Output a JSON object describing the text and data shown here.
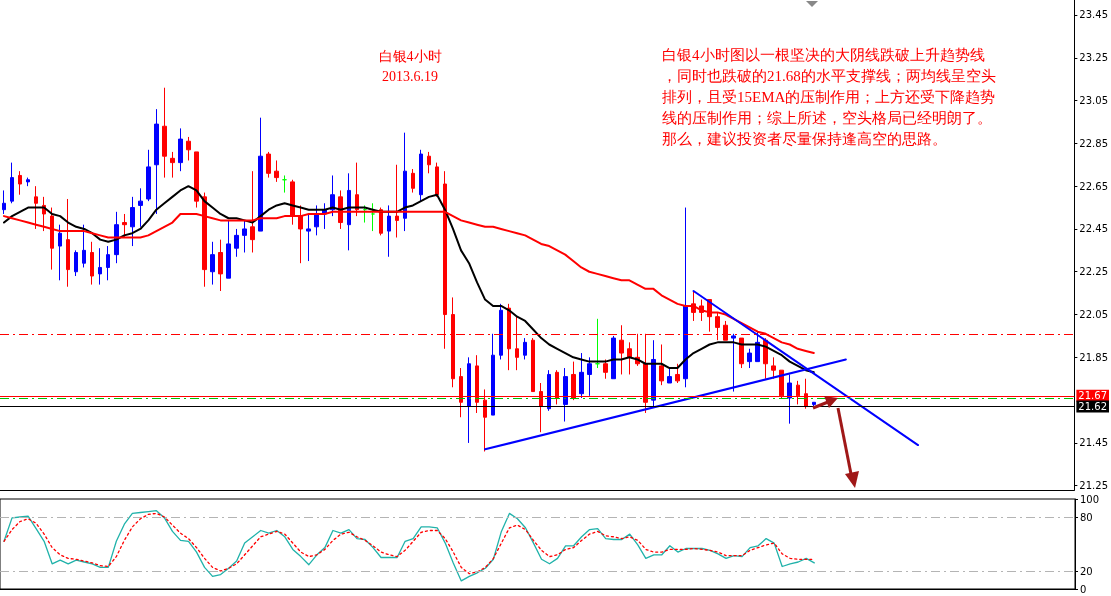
{
  "chart_data": [
    {
      "type": "candlestick",
      "title": "白银4小时",
      "subtitle": "2013.6.19",
      "annotations": [
        "白银4小时图以一根坚决的大阴线跌破上升趋势线，同时也跌破的21.68的水平支撑线；两均线呈空头排列，且受15EMA的压制作用；上方还受下降趋势线的压制作用；综上所述，空头格局已经明朗了。那么，建议投资者尽量保持逢高空的思路。"
      ],
      "categories": [
        null,
        null,
        null,
        null,
        null,
        null,
        null,
        null,
        null,
        null,
        null,
        null,
        null,
        null,
        null,
        null,
        null,
        null,
        null,
        null,
        null,
        null,
        null,
        null,
        null,
        null,
        null,
        null,
        null,
        null,
        null,
        null,
        null,
        null,
        null,
        null,
        null,
        null,
        null,
        null,
        null,
        null,
        null,
        null,
        null,
        null,
        null,
        null,
        null,
        null,
        null,
        null,
        null,
        null,
        null,
        null,
        null,
        null,
        null,
        null,
        null,
        null,
        null,
        null,
        null,
        null,
        null,
        null,
        null,
        null,
        null,
        null,
        null,
        null,
        null,
        null,
        null,
        null,
        null,
        null,
        null,
        null,
        null,
        null,
        null,
        null,
        null,
        null,
        null,
        null,
        null,
        null,
        null,
        null,
        null,
        null,
        null,
        null,
        null,
        null,
        null,
        null,
        null,
        null,
        null,
        null,
        null,
        null,
        null,
        null,
        null,
        null,
        null,
        null,
        null,
        null,
        null,
        null,
        null,
        null,
        null,
        null,
        null,
        null,
        null,
        null,
        null,
        null,
        null,
        null,
        null,
        null,
        null,
        null
      ],
      "series": [
        {
          "ohlc": [
            [
              22.54,
              22.63,
              22.52,
              22.57
            ],
            [
              22.58,
              22.76,
              22.57,
              22.69
            ],
            [
              22.7,
              22.72,
              22.61,
              22.66
            ],
            [
              22.67,
              22.69,
              22.65,
              22.68
            ],
            [
              22.6,
              22.65,
              22.45,
              22.57
            ],
            [
              22.56,
              22.6,
              22.44,
              22.52
            ],
            [
              22.51,
              22.55,
              22.26,
              22.36
            ],
            [
              22.37,
              22.47,
              22.21,
              22.43
            ],
            [
              22.4,
              22.59,
              22.18,
              22.26
            ],
            [
              22.25,
              22.35,
              22.23,
              22.34
            ],
            [
              22.29,
              22.47,
              22.27,
              22.35
            ],
            [
              22.34,
              22.39,
              22.19,
              22.23
            ],
            [
              22.24,
              22.36,
              22.19,
              22.27
            ],
            [
              22.27,
              22.37,
              22.21,
              22.33
            ],
            [
              22.33,
              22.53,
              22.29,
              22.47
            ],
            [
              22.48,
              22.52,
              22.41,
              22.47
            ],
            [
              22.46,
              22.6,
              22.37,
              22.55
            ],
            [
              22.56,
              22.64,
              22.46,
              22.58
            ],
            [
              22.59,
              22.82,
              22.58,
              22.74
            ],
            [
              22.75,
              23.01,
              22.52,
              22.94
            ],
            [
              22.93,
              23.11,
              22.69,
              22.79
            ],
            [
              22.78,
              22.81,
              22.69,
              22.76
            ],
            [
              22.76,
              22.92,
              22.72,
              22.87
            ],
            [
              22.86,
              22.88,
              22.77,
              22.82
            ],
            [
              22.81,
              22.81,
              22.55,
              22.58
            ],
            [
              22.6,
              22.62,
              22.18,
              22.26
            ],
            [
              22.25,
              22.39,
              22.19,
              22.33
            ],
            [
              22.34,
              22.4,
              22.16,
              22.24
            ],
            [
              22.22,
              22.49,
              22.22,
              22.38
            ],
            [
              22.36,
              22.45,
              22.32,
              22.42
            ],
            [
              22.42,
              22.49,
              22.34,
              22.45
            ],
            [
              22.46,
              22.72,
              22.34,
              22.4
            ],
            [
              22.44,
              22.97,
              22.44,
              22.79
            ],
            [
              22.8,
              22.81,
              22.69,
              22.71
            ],
            [
              22.72,
              22.77,
              22.67,
              22.69
            ],
            [
              22.68,
              22.7,
              22.62,
              22.68
            ],
            [
              22.67,
              22.68,
              22.47,
              22.51
            ],
            [
              22.51,
              22.56,
              22.29,
              22.45
            ],
            [
              22.44,
              22.52,
              22.3,
              22.45
            ],
            [
              22.46,
              22.56,
              22.42,
              22.52
            ],
            [
              22.52,
              22.57,
              22.45,
              22.54
            ],
            [
              22.54,
              22.7,
              22.51,
              22.61
            ],
            [
              22.6,
              22.63,
              22.45,
              22.48
            ],
            [
              22.47,
              22.71,
              22.35,
              22.63
            ],
            [
              22.61,
              22.76,
              22.51,
              22.54
            ],
            [
              22.54,
              22.56,
              22.48,
              22.54
            ],
            [
              22.52,
              22.57,
              22.44,
              22.52
            ],
            [
              22.54,
              22.55,
              22.42,
              22.43
            ],
            [
              22.44,
              22.56,
              22.32,
              22.51
            ],
            [
              22.51,
              22.75,
              22.41,
              22.49
            ],
            [
              22.5,
              22.9,
              22.44,
              22.72
            ],
            [
              22.71,
              22.73,
              22.62,
              22.64
            ],
            [
              22.61,
              22.82,
              22.58,
              22.8
            ],
            [
              22.79,
              22.81,
              22.71,
              22.75
            ],
            [
              22.74,
              22.76,
              22.6,
              22.61
            ],
            [
              22.66,
              22.72,
              21.89,
              22.05
            ],
            [
              22.05,
              22.13,
              21.71,
              21.75
            ],
            [
              21.76,
              21.8,
              21.57,
              21.64
            ],
            [
              21.62,
              21.85,
              21.45,
              21.82
            ],
            [
              21.81,
              21.86,
              21.59,
              21.64
            ],
            [
              21.65,
              21.7,
              21.41,
              21.57
            ],
            [
              21.58,
              21.96,
              21.58,
              21.86
            ],
            [
              21.86,
              22.1,
              21.84,
              22.07
            ],
            [
              22.08,
              22.1,
              21.79,
              21.89
            ],
            [
              21.89,
              22.04,
              21.79,
              21.85
            ],
            [
              21.86,
              21.94,
              21.84,
              21.92
            ],
            [
              21.93,
              21.94,
              21.69,
              21.69
            ],
            [
              21.69,
              21.73,
              21.5,
              21.62
            ],
            [
              21.61,
              21.79,
              21.6,
              21.77
            ],
            [
              21.78,
              21.79,
              21.63,
              21.66
            ],
            [
              21.63,
              21.8,
              21.55,
              21.76
            ],
            [
              21.77,
              21.83,
              21.65,
              21.66
            ],
            [
              21.68,
              21.87,
              21.66,
              21.78
            ],
            [
              21.77,
              21.85,
              21.67,
              21.82
            ],
            [
              21.82,
              22.03,
              21.8,
              21.82
            ],
            [
              21.82,
              21.84,
              21.75,
              21.78
            ],
            [
              21.75,
              21.95,
              21.75,
              21.94
            ],
            [
              21.93,
              22.0,
              21.77,
              21.87
            ],
            [
              21.89,
              21.92,
              21.77,
              21.85
            ],
            [
              21.85,
              21.96,
              21.81,
              21.82
            ],
            [
              21.82,
              21.96,
              21.59,
              21.64
            ],
            [
              21.65,
              21.93,
              21.62,
              21.84
            ],
            [
              21.81,
              21.91,
              21.72,
              21.74
            ],
            [
              21.73,
              21.8,
              21.73,
              21.76
            ],
            [
              21.77,
              21.82,
              21.73,
              21.74
            ],
            [
              21.75,
              22.55,
              21.71,
              22.09
            ],
            [
              22.1,
              22.16,
              22.02,
              22.06
            ],
            [
              22.09,
              22.12,
              22.02,
              22.06
            ],
            [
              22.12,
              22.12,
              21.97,
              22.04
            ],
            [
              22.04,
              22.06,
              21.93,
              21.99
            ],
            [
              22.0,
              22.02,
              21.93,
              21.93
            ],
            [
              21.94,
              21.96,
              21.69,
              21.95
            ],
            [
              21.94,
              21.94,
              21.8,
              21.82
            ],
            [
              21.83,
              21.89,
              21.8,
              21.87
            ],
            [
              21.83,
              21.97,
              21.83,
              21.92
            ],
            [
              21.93,
              21.94,
              21.75,
              21.82
            ],
            [
              21.81,
              21.85,
              21.75,
              21.79
            ],
            [
              21.79,
              21.79,
              21.66,
              21.67
            ],
            [
              21.66,
              21.77,
              21.54,
              21.73
            ],
            [
              21.72,
              21.74,
              21.63,
              21.67
            ],
            [
              21.68,
              21.75,
              21.61,
              21.62
            ],
            [
              21.63,
              21.64,
              21.62,
              21.64
            ],
            null,
            null,
            null,
            null,
            null,
            null,
            null,
            null,
            null,
            null,
            null,
            null,
            null,
            null,
            null,
            null,
            null,
            null,
            null,
            null,
            null,
            null,
            null,
            null,
            null,
            null,
            null,
            null,
            null,
            null,
            null,
            null
          ],
          "colors": [
            "#0000ff",
            "#0000ff",
            "#ff0000",
            "#0000ff",
            "#ff0000",
            "#ff0000",
            "#ff0000",
            "#0000ff",
            "#ff0000",
            "#0000ff",
            "#0000ff",
            "#ff0000",
            "#0000ff",
            "#0000ff",
            "#0000ff",
            "#ff0000",
            "#0000ff",
            "#0000ff",
            "#0000ff",
            "#0000ff",
            "#ff0000",
            "#ff0000",
            "#0000ff",
            "#ff0000",
            "#ff0000",
            "#ff0000",
            "#0000ff",
            "#ff0000",
            "#0000ff",
            "#0000ff",
            "#0000ff",
            "#ff0000",
            "#0000ff",
            "#ff0000",
            "#ff0000",
            "#00ff00",
            "#ff0000",
            "#ff0000",
            "#0000ff",
            "#0000ff",
            "#0000ff",
            "#0000ff",
            "#ff0000",
            "#0000ff",
            "#ff0000",
            "#00ff00",
            "#00ff00",
            "#ff0000",
            "#0000ff",
            "#ff0000",
            "#0000ff",
            "#ff0000",
            "#0000ff",
            "#ff0000",
            "#ff0000",
            "#ff0000",
            "#ff0000",
            "#ff0000",
            "#0000ff",
            "#ff0000",
            "#ff0000",
            "#0000ff",
            "#0000ff",
            "#ff0000",
            "#ff0000",
            "#0000ff",
            "#ff0000",
            "#ff0000",
            "#0000ff",
            "#ff0000",
            "#0000ff",
            "#ff0000",
            "#0000ff",
            "#0000ff",
            "#00ff00",
            "#ff0000",
            "#0000ff",
            "#ff0000",
            "#ff0000",
            "#ff0000",
            "#ff0000",
            "#0000ff",
            "#ff0000",
            "#0000ff",
            "#ff0000",
            "#0000ff",
            "#ff0000",
            "#ff0000",
            "#ff0000",
            "#ff0000",
            "#ff0000",
            "#0000ff",
            "#ff0000",
            "#0000ff",
            "#0000ff",
            "#ff0000",
            "#ff0000",
            "#ff0000",
            "#0000ff",
            "#ff0000",
            "#ff0000",
            "#0000ff",
            null,
            null,
            null,
            null,
            null,
            null,
            null,
            null,
            null,
            null,
            null,
            null,
            null,
            null,
            null,
            null,
            null,
            null,
            null,
            null,
            null,
            null,
            null,
            null,
            null,
            null,
            null,
            null,
            null,
            null,
            null,
            null
          ]
        },
        {
          "type": "line",
          "color": "#000000",
          "values": [
            22.48,
            22.51,
            22.53,
            22.55,
            22.55,
            22.55,
            22.52,
            22.51,
            22.48,
            22.46,
            22.45,
            22.43,
            22.4,
            22.39,
            22.4,
            22.42,
            22.43,
            22.45,
            22.49,
            22.54,
            22.57,
            22.6,
            22.63,
            22.65,
            22.63,
            22.58,
            22.55,
            22.52,
            22.5,
            22.5,
            22.49,
            22.48,
            22.51,
            22.54,
            22.56,
            22.57,
            22.56,
            22.55,
            22.54,
            22.54,
            22.54,
            22.55,
            22.54,
            22.55,
            22.55,
            22.55,
            22.54,
            22.53,
            22.53,
            22.53,
            22.55,
            22.56,
            22.58,
            22.6,
            22.61,
            22.54,
            22.45,
            22.35,
            22.29,
            22.2,
            22.12,
            22.09,
            22.09,
            22.07,
            22.04,
            22.02,
            21.98,
            21.94,
            21.91,
            21.89,
            21.87,
            21.85,
            21.84,
            21.83,
            21.83,
            21.83,
            21.84,
            21.84,
            21.85,
            21.84,
            21.82,
            21.82,
            21.82,
            21.8,
            21.8,
            21.84,
            21.87,
            21.89,
            21.91,
            21.92,
            21.92,
            21.92,
            21.91,
            21.91,
            21.91,
            21.9,
            21.88,
            21.86,
            21.83,
            21.81,
            21.79,
            21.78,
            null,
            null,
            null,
            null,
            null,
            null,
            null,
            null,
            null,
            null,
            null,
            null,
            null,
            null,
            null,
            null,
            null,
            null,
            null,
            null,
            null,
            null,
            null,
            null,
            null,
            null,
            null,
            null,
            null,
            null,
            null,
            null
          ]
        },
        {
          "type": "line",
          "color": "#ff0000",
          "values": [
            22.51,
            22.5,
            22.49,
            22.48,
            22.47,
            22.46,
            22.45,
            22.44,
            22.44,
            22.44,
            22.44,
            22.43,
            22.42,
            22.41,
            22.41,
            22.41,
            22.41,
            22.41,
            22.42,
            22.44,
            22.46,
            22.48,
            22.52,
            22.52,
            22.52,
            22.51,
            22.5,
            22.49,
            22.49,
            22.49,
            22.49,
            22.49,
            22.5,
            22.5,
            22.5,
            22.51,
            22.51,
            22.51,
            22.52,
            22.52,
            22.52,
            22.53,
            22.53,
            22.53,
            22.53,
            22.53,
            22.53,
            22.53,
            22.53,
            22.53,
            22.53,
            22.53,
            22.53,
            22.53,
            22.53,
            22.53,
            22.51,
            22.49,
            22.48,
            22.47,
            22.46,
            22.46,
            22.45,
            22.44,
            22.43,
            22.42,
            22.4,
            22.38,
            22.37,
            22.35,
            22.33,
            22.3,
            22.27,
            22.25,
            22.24,
            22.23,
            22.22,
            22.21,
            22.21,
            22.19,
            22.17,
            22.17,
            22.14,
            22.12,
            22.1,
            22.09,
            22.09,
            22.07,
            22.06,
            22.06,
            22.05,
            22.03,
            22.01,
            21.99,
            21.97,
            21.96,
            21.94,
            21.92,
            21.91,
            21.89,
            21.88,
            21.87,
            null,
            null,
            null,
            null,
            null,
            null,
            null,
            null,
            null,
            null,
            null,
            null,
            null,
            null,
            null,
            null,
            null,
            null,
            null,
            null,
            null,
            null,
            null,
            null,
            null,
            null,
            null,
            null,
            null,
            null,
            null,
            null
          ]
        },
        {
          "type": "line",
          "color": "#0000ff",
          "values": [
            null,
            null,
            null,
            null,
            null,
            null,
            null,
            null,
            null,
            null,
            null,
            null,
            null,
            null,
            null,
            null,
            null,
            null,
            null,
            null,
            null,
            null,
            null,
            null,
            null,
            null,
            null,
            null,
            null,
            null,
            null,
            null,
            null,
            null,
            null,
            null,
            null,
            null,
            null,
            null,
            null,
            null,
            null,
            null,
            null,
            null,
            null,
            null,
            null,
            null,
            null,
            null,
            null,
            null,
            null,
            null,
            null,
            null,
            null,
            null,
            21.42,
            null,
            null,
            null,
            null,
            null,
            null,
            null,
            null,
            null,
            null,
            null,
            null,
            null,
            null,
            null,
            null,
            null,
            null,
            null,
            null,
            null,
            null,
            null,
            null,
            null,
            null,
            null,
            null,
            null,
            null,
            null,
            null,
            null,
            null,
            null,
            null,
            null,
            null,
            null,
            null,
            null,
            null,
            null,
            null,
            21.84,
            null,
            null,
            null,
            null,
            null,
            null,
            null,
            null,
            null,
            null,
            null,
            null,
            null,
            null,
            null,
            null,
            null,
            null,
            null,
            null,
            null,
            null,
            null,
            null,
            null,
            null,
            null,
            null
          ]
        },
        {
          "type": "line",
          "color": "#0000ff",
          "values": [
            null,
            null,
            null,
            null,
            null,
            null,
            null,
            null,
            null,
            null,
            null,
            null,
            null,
            null,
            null,
            null,
            null,
            null,
            null,
            null,
            null,
            null,
            null,
            null,
            null,
            null,
            null,
            null,
            null,
            null,
            null,
            null,
            null,
            null,
            null,
            null,
            null,
            null,
            null,
            null,
            null,
            null,
            null,
            null,
            null,
            null,
            null,
            null,
            null,
            null,
            null,
            null,
            null,
            null,
            null,
            null,
            null,
            null,
            null,
            null,
            null,
            null,
            null,
            null,
            null,
            null,
            null,
            null,
            null,
            null,
            null,
            null,
            null,
            null,
            null,
            null,
            null,
            null,
            null,
            null,
            null,
            null,
            null,
            null,
            null,
            null,
            22.16,
            null,
            null,
            null,
            null,
            null,
            null,
            null,
            null,
            null,
            null,
            null,
            null,
            null,
            null,
            null,
            null,
            null,
            null,
            null,
            null,
            null,
            null,
            null,
            null,
            null,
            null,
            null,
            21.44,
            null,
            null,
            null,
            null,
            null,
            null,
            null,
            null,
            null,
            null,
            null,
            null,
            null,
            null,
            null,
            null,
            null,
            null,
            null
          ]
        }
      ],
      "ylim": [
        21.23,
        23.52
      ],
      "yticks": [
        21.25,
        21.45,
        21.85,
        22.05,
        22.25,
        22.45,
        22.65,
        22.85,
        23.05,
        23.25,
        23.45
      ],
      "ref_lines": [
        {
          "axis": "y",
          "value": 21.96,
          "color": "#ff0000",
          "line_style": "dashed"
        },
        {
          "axis": "y",
          "value": 21.66,
          "color": "#00c000",
          "line_style": "dashed"
        },
        {
          "axis": "y",
          "value": 21.67,
          "label": "21.67",
          "color": "#ff0000",
          "line_style": "solid"
        },
        {
          "axis": "y",
          "value": 21.62,
          "label": "21.62",
          "color": "#000000",
          "line_style": "solid"
        }
      ],
      "grid": false,
      "marker": "none",
      "tick_labels": "y"
    },
    {
      "type": "line",
      "categories": [
        null,
        null,
        null,
        null,
        null,
        null,
        null,
        null,
        null,
        null,
        null,
        null,
        null,
        null,
        null,
        null,
        null,
        null,
        null,
        null,
        null,
        null,
        null,
        null,
        null,
        null,
        null,
        null,
        null,
        null,
        null,
        null,
        null,
        null,
        null,
        null,
        null,
        null,
        null,
        null,
        null,
        null,
        null,
        null,
        null,
        null,
        null,
        null,
        null,
        null,
        null,
        null,
        null,
        null,
        null,
        null,
        null,
        null,
        null,
        null,
        null,
        null,
        null,
        null,
        null,
        null,
        null,
        null,
        null,
        null,
        null,
        null,
        null,
        null,
        null,
        null,
        null,
        null,
        null,
        null,
        null,
        null,
        null,
        null,
        null,
        null,
        null,
        null,
        null,
        null,
        null,
        null,
        null,
        null,
        null,
        null,
        null,
        null,
        null,
        null,
        null,
        null,
        null,
        null,
        null,
        null,
        null,
        null,
        null,
        null,
        null,
        null,
        null,
        null,
        null,
        null,
        null,
        null,
        null,
        null,
        null,
        null,
        null,
        null,
        null,
        null,
        null,
        null,
        null,
        null,
        null,
        null,
        null,
        null
      ],
      "series": [
        {
          "color": "#20b2aa",
          "line_style": "solid",
          "values": [
            53,
            79,
            80,
            81,
            67,
            53,
            28,
            32,
            28,
            32,
            30,
            28,
            24,
            24,
            53,
            72,
            84,
            85,
            86,
            87,
            79,
            64,
            54,
            53,
            41,
            24,
            14,
            16,
            23,
            31,
            51,
            58,
            65,
            62,
            65,
            58,
            44,
            36,
            27,
            38,
            46,
            65,
            62,
            66,
            56,
            55,
            46,
            35,
            35,
            35,
            53,
            56,
            69,
            69,
            68,
            51,
            29,
            9,
            14,
            18,
            23,
            33,
            64,
            84,
            78,
            68,
            51,
            33,
            28,
            34,
            48,
            48,
            58,
            66,
            67,
            56,
            55,
            55,
            61,
            49,
            34,
            38,
            38,
            48,
            41,
            45,
            45,
            45,
            43,
            39,
            34,
            37,
            36,
            46,
            48,
            56,
            51,
            25,
            28,
            30,
            34,
            29,
            null,
            null,
            null,
            null,
            null,
            null,
            null,
            null,
            null,
            null,
            null,
            null,
            null,
            null,
            null,
            null,
            null,
            null,
            null,
            null,
            null,
            null,
            null,
            null,
            null,
            null,
            null,
            null,
            null,
            null,
            null,
            null
          ]
        },
        {
          "color": "#ff0000",
          "line_style": "dotted",
          "values": [
            53,
            66,
            75,
            78,
            73,
            61,
            46,
            38,
            34,
            33,
            31,
            29,
            26,
            25,
            36,
            54,
            69,
            78,
            83,
            84,
            80,
            71,
            62,
            56,
            46,
            34,
            24,
            20,
            23,
            28,
            38,
            48,
            58,
            61,
            64,
            61,
            51,
            41,
            36,
            38,
            44,
            54,
            61,
            63,
            58,
            54,
            48,
            41,
            38,
            36,
            43,
            53,
            63,
            65,
            65,
            56,
            41,
            24,
            17,
            19,
            24,
            34,
            51,
            68,
            71,
            66,
            54,
            43,
            36,
            38,
            44,
            46,
            54,
            61,
            64,
            59,
            58,
            56,
            58,
            54,
            44,
            41,
            41,
            44,
            44,
            44,
            45,
            44,
            43,
            41,
            37,
            37,
            37,
            43,
            46,
            49,
            51,
            39,
            34,
            33,
            33,
            33,
            null,
            null,
            null,
            null,
            null,
            null,
            null,
            null,
            null,
            null,
            null,
            null,
            null,
            null,
            null,
            null,
            null,
            null,
            null,
            null,
            null,
            null,
            null,
            null,
            null,
            null,
            null,
            null,
            null,
            null,
            null,
            null
          ]
        }
      ],
      "ylim": [
        0,
        100
      ],
      "yticks": [
        0,
        20,
        80,
        100
      ],
      "ref_lines": [
        {
          "axis": "y",
          "value": 80,
          "color": "#b4b4b4",
          "line_style": "dashed"
        },
        {
          "axis": "y",
          "value": 20,
          "color": "#b4b4b4",
          "line_style": "dashed"
        }
      ],
      "grid": false,
      "marker": "none",
      "tick_labels": "y"
    }
  ]
}
